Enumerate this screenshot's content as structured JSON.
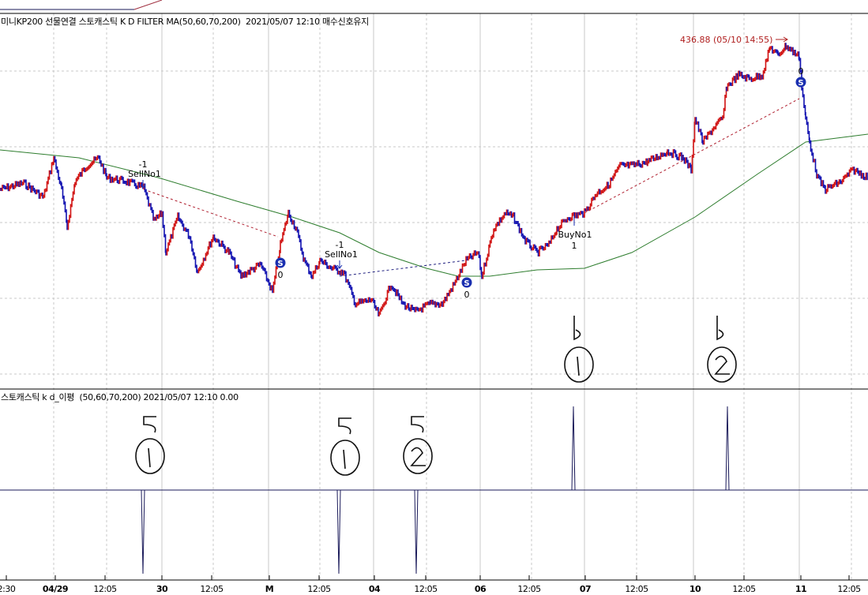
{
  "price_panel": {
    "title": "미니KP200 선물연결 스토캐스틱 K D FILTER MA(50,60,70,200)  2021/05/07 12:10 매수신호유지",
    "max_label": "436.88 (05/10 14:55)",
    "signals": [
      {
        "name": "SellNo1",
        "qty": "-1"
      },
      {
        "name": "S",
        "qty": "0"
      },
      {
        "name": "SellNo1",
        "qty": "-1"
      },
      {
        "name": "S",
        "qty": "0"
      },
      {
        "name": "BuyNo1",
        "qty": "1"
      },
      {
        "name": "S",
        "qty": "0"
      }
    ]
  },
  "indicator_panel": {
    "title": "스토캐스틱 k d_이평  (50,60,70,200) 2021/05/07 12:10 0.00"
  },
  "x_axis": [
    "2:30",
    "04/29",
    "12:05",
    "30",
    "12:05",
    "M",
    "12:05",
    "04",
    "12:05",
    "06",
    "12:05",
    "07",
    "12:05",
    "10",
    "12:05",
    "11",
    "12:05"
  ],
  "handwritten": [
    "5 ①",
    "5 ①",
    "5 ②",
    "b ①",
    "b ②"
  ],
  "colors": {
    "up": "#d01010",
    "down": "#1010b0",
    "ma": "#2e7d2e",
    "sell_dash": "#b02030",
    "buy_dash": "#202080",
    "signal": "#1a2fb0"
  }
}
